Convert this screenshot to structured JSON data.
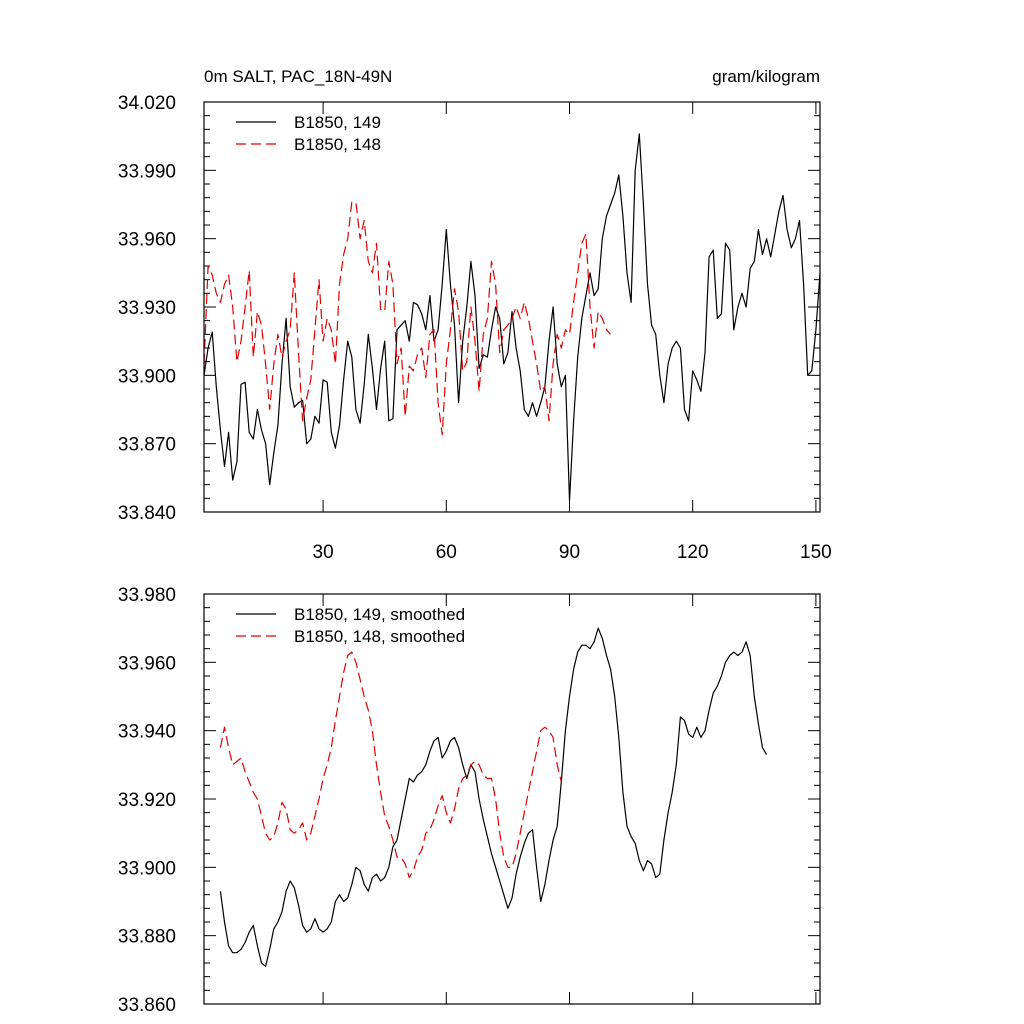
{
  "chart_data": [
    {
      "type": "line",
      "title": "0m SALT, PAC_18N-49N",
      "units": "gram/kilogram",
      "xlim": [
        1,
        151
      ],
      "ylim": [
        33.84,
        34.02
      ],
      "xticks": [
        30,
        60,
        90,
        120,
        150
      ],
      "xtick_labels": [
        "30",
        "60",
        "90",
        "120",
        "150"
      ],
      "yticks": [
        33.84,
        33.87,
        33.9,
        33.93,
        33.96,
        33.99,
        34.02
      ],
      "ytick_labels": [
        "33.840",
        "33.870",
        "33.900",
        "33.930",
        "33.960",
        "33.990",
        "34.020"
      ],
      "legend_position": "top-left",
      "series": [
        {
          "name": "B1850, 149",
          "color": "#000000",
          "dash": "solid",
          "x_start": 1,
          "values": [
            33.9,
            33.912,
            33.919,
            33.895,
            33.876,
            33.86,
            33.875,
            33.854,
            33.862,
            33.896,
            33.897,
            33.875,
            33.872,
            33.885,
            33.876,
            33.87,
            33.852,
            33.866,
            33.878,
            33.905,
            33.925,
            33.895,
            33.886,
            33.888,
            33.889,
            33.87,
            33.872,
            33.882,
            33.879,
            33.898,
            33.897,
            33.875,
            33.868,
            33.878,
            33.898,
            33.915,
            33.908,
            33.885,
            33.879,
            33.896,
            33.918,
            33.903,
            33.885,
            33.903,
            33.915,
            33.88,
            33.881,
            33.92,
            33.922,
            33.924,
            33.915,
            33.932,
            33.931,
            33.927,
            33.92,
            33.935,
            33.915,
            33.92,
            33.94,
            33.964,
            33.94,
            33.922,
            33.888,
            33.915,
            33.93,
            33.95,
            33.935,
            33.903,
            33.909,
            33.908,
            33.92,
            33.93,
            33.925,
            33.905,
            33.91,
            33.928,
            33.912,
            33.902,
            33.885,
            33.882,
            33.888,
            33.882,
            33.888,
            33.895,
            33.915,
            33.93,
            33.905,
            33.895,
            33.9,
            33.845,
            33.88,
            33.908,
            33.925,
            33.935,
            33.945,
            33.935,
            33.938,
            33.96,
            33.97,
            33.975,
            33.98,
            33.988,
            33.97,
            33.945,
            33.932,
            33.99,
            34.006,
            33.975,
            33.94,
            33.922,
            33.918,
            33.9,
            33.888,
            33.905,
            33.912,
            33.915,
            33.912,
            33.885,
            33.88,
            33.902,
            33.898,
            33.893,
            33.91,
            33.952,
            33.955,
            33.925,
            33.927,
            33.958,
            33.955,
            33.92,
            33.93,
            33.936,
            33.93,
            33.947,
            33.95,
            33.964,
            33.953,
            33.96,
            33.952,
            33.962,
            33.972,
            33.979,
            33.964,
            33.956,
            33.96,
            33.968,
            33.94,
            33.9,
            33.902,
            33.92,
            33.945
          ]
        },
        {
          "name": "B1850, 148",
          "color": "#e00000",
          "dash": "dashed",
          "x_start": 1,
          "values": [
            33.905,
            33.948,
            33.944,
            33.936,
            33.932,
            33.94,
            33.944,
            33.93,
            33.906,
            33.915,
            33.93,
            33.946,
            33.908,
            33.928,
            33.922,
            33.905,
            33.885,
            33.905,
            33.918,
            33.908,
            33.915,
            33.92,
            33.945,
            33.91,
            33.88,
            33.89,
            33.898,
            33.92,
            33.942,
            33.915,
            33.925,
            33.92,
            33.905,
            33.94,
            33.953,
            33.96,
            33.976,
            33.976,
            33.96,
            33.968,
            33.95,
            33.945,
            33.958,
            33.929,
            33.928,
            33.95,
            33.94,
            33.905,
            33.912,
            33.882,
            33.904,
            33.902,
            33.909,
            33.912,
            33.899,
            33.918,
            33.92,
            33.888,
            33.874,
            33.905,
            33.92,
            33.938,
            33.928,
            33.902,
            33.906,
            33.93,
            33.915,
            33.893,
            33.918,
            33.925,
            33.95,
            33.94,
            33.91,
            33.92,
            33.922,
            33.925,
            33.93,
            33.925,
            33.932,
            33.925,
            33.915,
            33.905,
            33.893,
            33.895,
            33.88,
            33.905,
            33.918,
            33.912,
            33.92,
            33.918,
            33.932,
            33.945,
            33.958,
            33.962,
            33.93,
            33.912,
            33.928,
            33.925,
            33.92,
            33.918
          ]
        }
      ]
    },
    {
      "type": "line",
      "xlim": [
        1,
        151
      ],
      "ylim": [
        33.86,
        33.98
      ],
      "xticks": [
        30,
        60,
        90,
        120,
        150
      ],
      "yticks": [
        33.86,
        33.88,
        33.9,
        33.92,
        33.94,
        33.96,
        33.98
      ],
      "ytick_labels": [
        "33.860",
        "33.880",
        "33.900",
        "33.920",
        "33.940",
        "33.960",
        "33.980"
      ],
      "legend_position": "top-left",
      "series": [
        {
          "name": "B1850, 149, smoothed",
          "color": "#000000",
          "dash": "solid",
          "x_start": 5,
          "values": [
            33.893,
            33.884,
            33.877,
            33.875,
            33.875,
            33.876,
            33.878,
            33.881,
            33.883,
            33.877,
            33.872,
            33.871,
            33.876,
            33.882,
            33.884,
            33.887,
            33.893,
            33.896,
            33.894,
            33.889,
            33.883,
            33.881,
            33.882,
            33.885,
            33.882,
            33.881,
            33.882,
            33.884,
            33.89,
            33.892,
            33.89,
            33.891,
            33.895,
            33.9,
            33.899,
            33.895,
            33.893,
            33.897,
            33.898,
            33.896,
            33.897,
            33.9,
            33.906,
            33.908,
            33.914,
            33.92,
            33.926,
            33.925,
            33.927,
            33.928,
            33.93,
            33.934,
            33.937,
            33.938,
            33.932,
            33.934,
            33.937,
            33.938,
            33.935,
            33.93,
            33.926,
            33.93,
            33.928,
            33.92,
            33.914,
            33.909,
            33.904,
            33.9,
            33.896,
            33.892,
            33.888,
            33.891,
            33.898,
            33.903,
            33.907,
            33.91,
            33.911,
            33.9,
            33.89,
            33.895,
            33.902,
            33.908,
            33.912,
            33.925,
            33.94,
            33.95,
            33.958,
            33.963,
            33.965,
            33.965,
            33.964,
            33.966,
            33.97,
            33.967,
            33.962,
            33.958,
            33.95,
            33.938,
            33.922,
            33.912,
            33.909,
            33.907,
            33.902,
            33.899,
            33.902,
            33.901,
            33.897,
            33.898,
            33.908,
            33.916,
            33.922,
            33.93,
            33.944,
            33.943,
            33.939,
            33.938,
            33.941,
            33.938,
            33.94,
            33.946,
            33.951,
            33.953,
            33.956,
            33.96,
            33.962,
            33.963,
            33.962,
            33.963,
            33.966,
            33.962,
            33.95,
            33.942,
            33.935,
            33.933
          ]
        },
        {
          "name": "B1850, 148, smoothed",
          "color": "#e00000",
          "dash": "dashed",
          "x_start": 5,
          "values": [
            33.935,
            33.941,
            33.935,
            33.93,
            33.931,
            33.932,
            33.928,
            33.925,
            33.922,
            33.92,
            33.915,
            33.91,
            33.908,
            33.909,
            33.913,
            33.919,
            33.917,
            33.911,
            33.91,
            33.911,
            33.913,
            33.908,
            33.91,
            33.915,
            33.92,
            33.926,
            33.93,
            33.935,
            33.943,
            33.95,
            33.957,
            33.962,
            33.963,
            33.96,
            33.955,
            33.95,
            33.946,
            33.94,
            33.93,
            33.922,
            33.915,
            33.912,
            33.908,
            33.903,
            33.903,
            33.901,
            33.897,
            33.899,
            33.903,
            33.905,
            33.91,
            33.911,
            33.914,
            33.918,
            33.921,
            33.916,
            33.913,
            33.917,
            33.923,
            33.926,
            33.927,
            33.93,
            33.931,
            33.93,
            33.927,
            33.926,
            33.926,
            33.92,
            33.91,
            33.903,
            33.9,
            33.9,
            33.904,
            33.91,
            33.916,
            33.922,
            33.928,
            33.934,
            33.94,
            33.941,
            33.94,
            33.938,
            33.93,
            33.925
          ]
        }
      ]
    }
  ]
}
